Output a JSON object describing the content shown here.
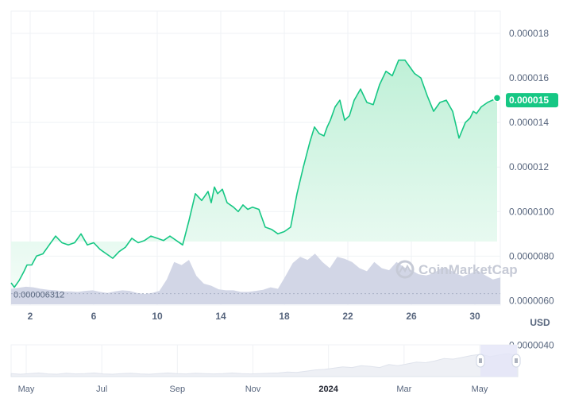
{
  "chart_data": {
    "type": "line",
    "ylim": [
      5.8e-06,
      1.9e-05
    ],
    "y_ticks": [
      "0.000018",
      "0.000016",
      "0.000014",
      "0.000012",
      "0.0000100",
      "0.0000080",
      "0.0000060",
      "0.0000040"
    ],
    "x_ticks": [
      "2",
      "6",
      "10",
      "14",
      "18",
      "22",
      "26",
      "30"
    ],
    "unit": "USD",
    "current_value": "0.000015",
    "min_label": "0.000006312",
    "watermark": "CoinMarketCap",
    "series": [
      {
        "x": [
          1.0,
          1.2,
          1.5,
          1.8,
          2.0,
          2.3,
          2.6,
          3.0,
          3.4,
          3.8,
          4.2,
          4.6,
          5.0,
          5.4,
          5.8,
          6.2,
          6.6,
          7.0,
          7.4,
          7.8,
          8.2,
          8.6,
          9.0,
          9.4,
          9.8,
          10.2,
          10.6,
          11.0,
          11.4,
          11.8,
          12.2,
          12.6,
          13.0,
          13.2,
          13.4,
          13.6,
          13.8,
          14.0,
          14.3,
          14.6,
          15.0,
          15.3,
          15.6,
          15.9,
          16.2,
          16.6,
          17.0,
          17.4,
          17.8,
          18.2,
          18.6,
          19.0,
          19.4,
          19.8,
          20.1,
          20.4,
          20.7,
          20.9,
          21.1,
          21.4,
          21.7,
          22.0,
          22.3,
          22.6,
          23.0,
          23.4,
          23.8,
          24.2,
          24.6,
          25.0,
          25.4,
          25.8,
          26.1,
          26.4,
          26.8,
          27.2,
          27.6,
          28.0,
          28.4,
          28.8,
          29.2,
          29.6,
          29.9,
          30.1,
          30.3,
          30.6,
          31.0,
          31.3,
          31.6
        ],
        "values": [
          6.8e-06,
          6.6e-06,
          6.9e-06,
          7.3e-06,
          7.6e-06,
          7.6e-06,
          8e-06,
          8.1e-06,
          8.5e-06,
          8.9e-06,
          8.6e-06,
          8.5e-06,
          8.6e-06,
          9e-06,
          8.5e-06,
          8.6e-06,
          8.3e-06,
          8.1e-06,
          7.9e-06,
          8.2e-06,
          8.4e-06,
          8.8e-06,
          8.6e-06,
          8.7e-06,
          8.9e-06,
          8.8e-06,
          8.7e-06,
          8.9e-06,
          8.7e-06,
          8.5e-06,
          9.6e-06,
          1.08e-05,
          1.05e-05,
          1.07e-05,
          1.09e-05,
          1.04e-05,
          1.11e-05,
          1.08e-05,
          1.1e-05,
          1.04e-05,
          1.02e-05,
          1e-05,
          1.03e-05,
          1.01e-05,
          1.02e-05,
          1.01e-05,
          9.3e-06,
          9.2e-06,
          9e-06,
          9.1e-06,
          9.3e-06,
          1.08e-05,
          1.2e-05,
          1.31e-05,
          1.38e-05,
          1.35e-05,
          1.34e-05,
          1.38e-05,
          1.41e-05,
          1.47e-05,
          1.5e-05,
          1.41e-05,
          1.43e-05,
          1.5e-05,
          1.55e-05,
          1.49e-05,
          1.48e-05,
          1.57e-05,
          1.63e-05,
          1.61e-05,
          1.68e-05,
          1.68e-05,
          1.65e-05,
          1.62e-05,
          1.6e-05,
          1.52e-05,
          1.45e-05,
          1.49e-05,
          1.5e-05,
          1.45e-05,
          1.33e-05,
          1.4e-05,
          1.42e-05,
          1.45e-05,
          1.44e-05,
          1.47e-05,
          1.49e-05,
          1.5e-05,
          1.51e-05
        ]
      }
    ],
    "volume": [
      0.3,
      0.32,
      0.34,
      0.33,
      0.3,
      0.28,
      0.27,
      0.25,
      0.25,
      0.24,
      0.26,
      0.27,
      0.24,
      0.22,
      0.25,
      0.27,
      0.26,
      0.22,
      0.2,
      0.22,
      0.26,
      0.48,
      0.82,
      0.76,
      0.86,
      0.55,
      0.4,
      0.36,
      0.29,
      0.27,
      0.27,
      0.24,
      0.24,
      0.26,
      0.28,
      0.33,
      0.3,
      0.54,
      0.8,
      0.92,
      0.86,
      0.98,
      0.82,
      0.7,
      0.92,
      0.88,
      0.82,
      0.7,
      0.64,
      0.82,
      0.7,
      0.66,
      0.82,
      0.72,
      0.66,
      0.58,
      0.56,
      0.6,
      0.7,
      0.68,
      0.6,
      0.54,
      0.6,
      0.65,
      0.56,
      0.48,
      0.52
    ],
    "navigator": {
      "ticks": [
        "May",
        "Jul",
        "Sep",
        "Nov",
        "2024",
        "Mar",
        "May"
      ],
      "values": [
        0.1,
        0.08,
        0.1,
        0.12,
        0.09,
        0.08,
        0.11,
        0.09,
        0.1,
        0.12,
        0.09,
        0.08,
        0.1,
        0.11,
        0.09,
        0.08,
        0.1,
        0.12,
        0.1,
        0.09,
        0.11,
        0.1,
        0.09,
        0.1,
        0.12,
        0.1,
        0.09,
        0.1,
        0.11,
        0.12,
        0.15,
        0.14,
        0.18,
        0.22,
        0.24,
        0.28,
        0.32,
        0.3,
        0.36,
        0.34,
        0.3,
        0.4,
        0.36,
        0.42,
        0.48,
        0.46,
        0.52,
        0.6,
        0.58,
        0.64,
        0.7,
        0.74,
        0.66,
        0.72,
        0.76,
        0.68
      ]
    },
    "colors": {
      "line": "#16c784",
      "area_top": "#bff0d7",
      "area_bottom": "#f2fcf7",
      "volume": "#cdd2e3",
      "current_label_bg": "#16c784",
      "grid": "#eff2f5"
    }
  }
}
